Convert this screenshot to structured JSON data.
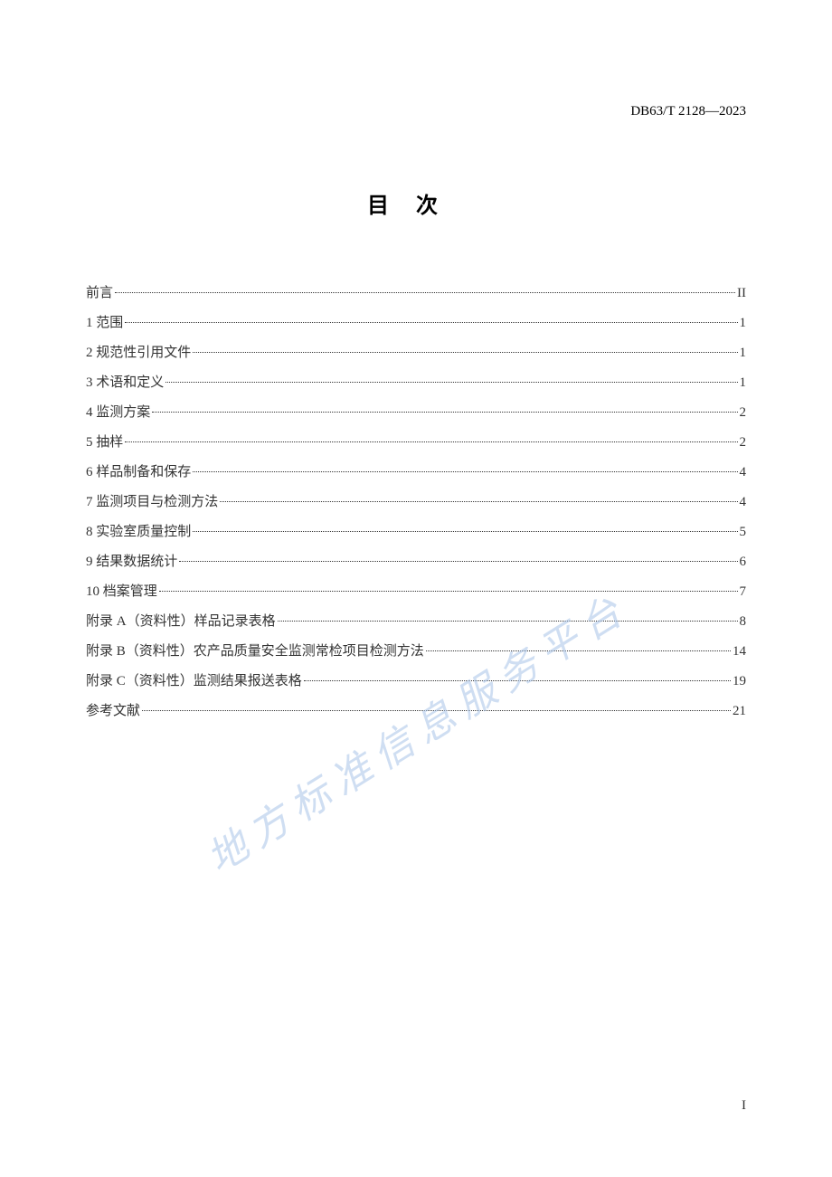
{
  "document": {
    "standard_code": "DB63/T 2128—2023",
    "title": "目次",
    "watermark_text": "地方标准信息服务平台",
    "page_number": "I",
    "colors": {
      "background": "#ffffff",
      "text": "#333333",
      "header_text": "#000000",
      "watermark": "#a8c4e8",
      "dots": "#333333"
    },
    "typography": {
      "header_fontsize": 15,
      "title_fontsize": 24,
      "title_letter_spacing": 30,
      "toc_fontsize": 15,
      "watermark_fontsize": 44,
      "watermark_rotation": -32,
      "toc_line_height": 33
    },
    "toc_entries": [
      {
        "label": "前言",
        "page": "II"
      },
      {
        "label": "1 范围",
        "page": "1"
      },
      {
        "label": "2 规范性引用文件",
        "page": "1"
      },
      {
        "label": "3 术语和定义",
        "page": "1"
      },
      {
        "label": "4 监测方案",
        "page": "2"
      },
      {
        "label": "5 抽样",
        "page": "2"
      },
      {
        "label": "6 样品制备和保存",
        "page": "4"
      },
      {
        "label": "7 监测项目与检测方法",
        "page": "4"
      },
      {
        "label": "8 实验室质量控制",
        "page": "5"
      },
      {
        "label": "9 结果数据统计",
        "page": "6"
      },
      {
        "label": "10 档案管理",
        "page": "7"
      },
      {
        "label": "附录 A（资料性）样品记录表格",
        "page": "8"
      },
      {
        "label": "附录 B（资料性）农产品质量安全监测常检项目检测方法",
        "page": "14"
      },
      {
        "label": "附录 C（资料性）监测结果报送表格",
        "page": "19"
      },
      {
        "label": "参考文献",
        "page": "21"
      }
    ]
  }
}
